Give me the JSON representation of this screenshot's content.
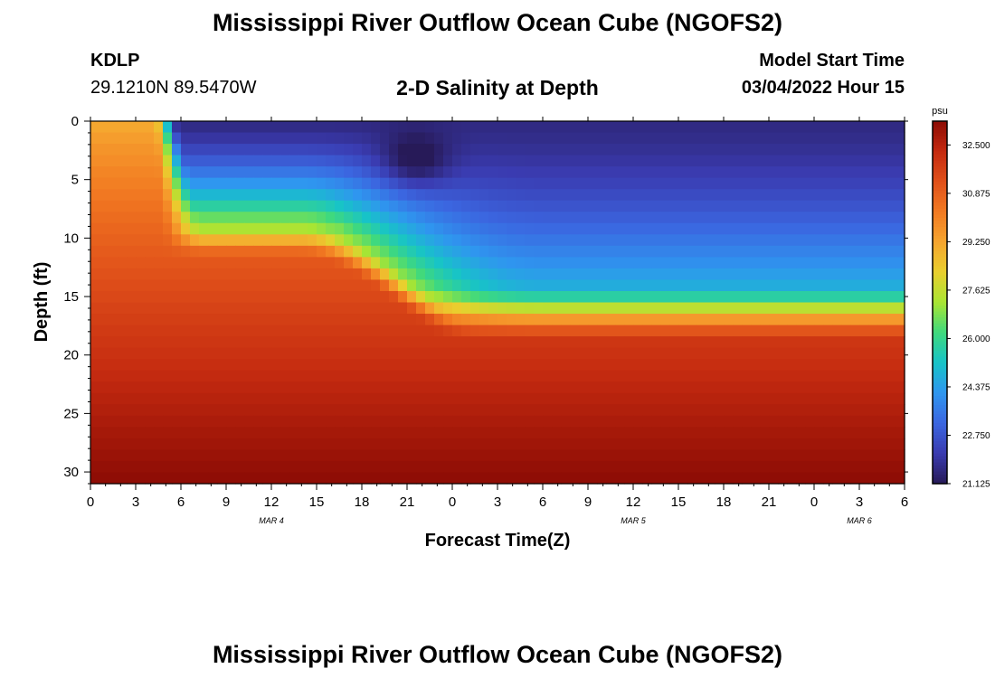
{
  "header": {
    "title": "Mississippi River Outflow Ocean Cube (NGOFS2)",
    "station_id": "KDLP",
    "coords": "29.1210N  89.5470W",
    "subtitle": "2-D Salinity at Depth",
    "model_start_label": "Model Start Time",
    "model_start_value": "03/04/2022 Hour 15"
  },
  "footer": {
    "title": "Mississippi River Outflow Ocean Cube (NGOFS2)"
  },
  "chart_data": {
    "type": "heatmap",
    "title": "2-D Salinity at Depth",
    "xlabel": "Forecast Time(Z)",
    "ylabel": "Depth (ft)",
    "x_hours": [
      0,
      54
    ],
    "x_ticks": [
      "0",
      "3",
      "6",
      "9",
      "12",
      "15",
      "18",
      "21",
      "0",
      "3",
      "6",
      "9",
      "12",
      "15",
      "18",
      "21",
      "0",
      "3",
      "6"
    ],
    "date_labels": [
      {
        "text": "MAR 4",
        "hour": 12
      },
      {
        "text": "MAR 5",
        "hour": 36
      },
      {
        "text": "MAR 6",
        "hour": 51
      }
    ],
    "ylim": [
      0,
      31
    ],
    "y_ticks": [
      0,
      5,
      10,
      15,
      20,
      25,
      30
    ],
    "colorbar": {
      "unit": "psu",
      "min": 21.125,
      "max": 33.3,
      "tick_labels": [
        "32.500",
        "30.875",
        "29.250",
        "27.625",
        "26.000",
        "24.375",
        "22.750",
        "21.125"
      ],
      "tick_values": [
        32.5,
        30.875,
        29.25,
        27.625,
        26.0,
        24.375,
        22.75,
        21.125
      ],
      "colors": [
        "#271a58",
        "#3a3bb0",
        "#3b66e0",
        "#2f96ef",
        "#17c3c8",
        "#3fd97d",
        "#a9e533",
        "#e9cf2e",
        "#f6a52f",
        "#f27a22",
        "#e0501a",
        "#c42a10",
        "#8c0b04"
      ]
    },
    "field": {
      "surface_offshore_psu": 29.0,
      "bottom_offshore_psu": 33.3,
      "front_hour": 4.2,
      "plume_fresh_psu": 21.6,
      "plume_core_psu": 21.125,
      "plume_core_hour": 21.5,
      "plume_core_depth": 3.5
    }
  }
}
